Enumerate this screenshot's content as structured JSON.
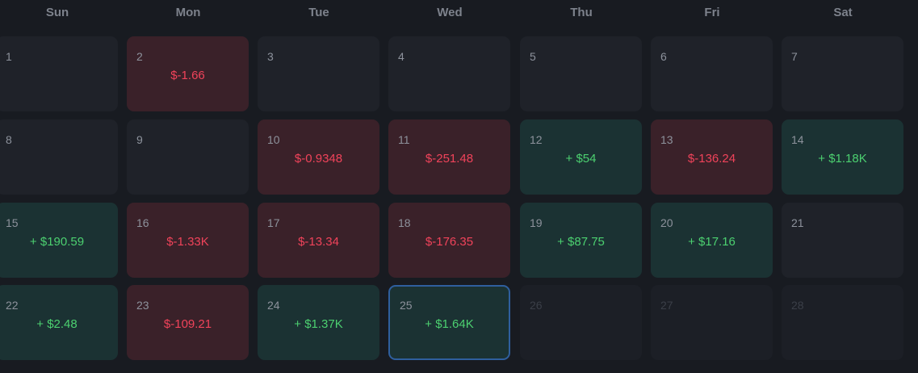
{
  "weekdays": [
    "Sun",
    "Mon",
    "Tue",
    "Wed",
    "Thu",
    "Fri",
    "Sat"
  ],
  "days": [
    {
      "day": "1",
      "pnl": "",
      "status": "neutral"
    },
    {
      "day": "2",
      "pnl": "$-1.66",
      "status": "loss"
    },
    {
      "day": "3",
      "pnl": "",
      "status": "neutral"
    },
    {
      "day": "4",
      "pnl": "",
      "status": "neutral"
    },
    {
      "day": "5",
      "pnl": "",
      "status": "neutral"
    },
    {
      "day": "6",
      "pnl": "",
      "status": "neutral"
    },
    {
      "day": "7",
      "pnl": "",
      "status": "neutral"
    },
    {
      "day": "8",
      "pnl": "",
      "status": "neutral"
    },
    {
      "day": "9",
      "pnl": "",
      "status": "neutral"
    },
    {
      "day": "10",
      "pnl": "$-0.9348",
      "status": "loss"
    },
    {
      "day": "11",
      "pnl": "$-251.48",
      "status": "loss"
    },
    {
      "day": "12",
      "pnl": "+ $54",
      "status": "gain"
    },
    {
      "day": "13",
      "pnl": "$-136.24",
      "status": "loss"
    },
    {
      "day": "14",
      "pnl": "+ $1.18K",
      "status": "gain"
    },
    {
      "day": "15",
      "pnl": "+ $190.59",
      "status": "gain"
    },
    {
      "day": "16",
      "pnl": "$-1.33K",
      "status": "loss"
    },
    {
      "day": "17",
      "pnl": "$-13.34",
      "status": "loss"
    },
    {
      "day": "18",
      "pnl": "$-176.35",
      "status": "loss"
    },
    {
      "day": "19",
      "pnl": "+ $87.75",
      "status": "gain"
    },
    {
      "day": "20",
      "pnl": "+ $17.16",
      "status": "gain"
    },
    {
      "day": "21",
      "pnl": "",
      "status": "neutral"
    },
    {
      "day": "22",
      "pnl": "+ $2.48",
      "status": "gain"
    },
    {
      "day": "23",
      "pnl": "$-109.21",
      "status": "loss"
    },
    {
      "day": "24",
      "pnl": "+ $1.37K",
      "status": "gain"
    },
    {
      "day": "25",
      "pnl": "+ $1.64K",
      "status": "gain",
      "today": true
    },
    {
      "day": "26",
      "pnl": "",
      "status": "future"
    },
    {
      "day": "27",
      "pnl": "",
      "status": "future"
    },
    {
      "day": "28",
      "pnl": "",
      "status": "future"
    }
  ],
  "colors": {
    "background": "#181b21",
    "loss_text": "#f0435a",
    "gain_text": "#4cd070",
    "today_border": "#2f5f9e"
  }
}
